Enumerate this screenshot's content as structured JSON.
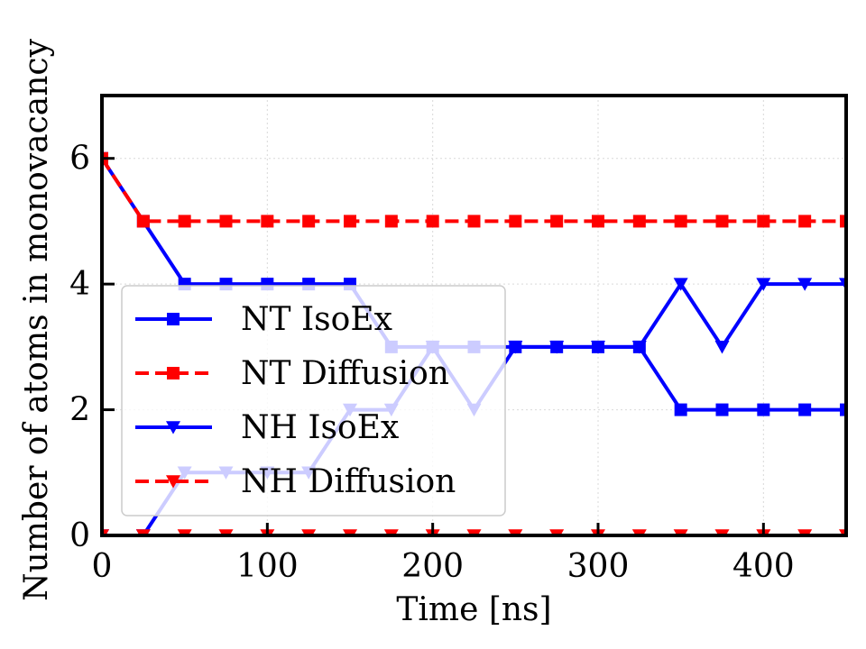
{
  "chart_data": {
    "type": "line",
    "title": "",
    "xlabel": "Time [ns]",
    "ylabel": "Number of atoms in monovacancy",
    "xlim": [
      0,
      450
    ],
    "ylim": [
      0,
      7
    ],
    "xticks": [
      0,
      100,
      200,
      300,
      400
    ],
    "yticks": [
      0,
      2,
      4,
      6
    ],
    "grid": true,
    "legend_position": "lower-left",
    "x": [
      0,
      25,
      50,
      75,
      100,
      125,
      150,
      175,
      200,
      225,
      250,
      275,
      300,
      325,
      350,
      375,
      400,
      425,
      450
    ],
    "series": [
      {
        "name": "NT IsoEx",
        "color": "#0000ff",
        "linestyle": "solid",
        "marker": "square",
        "values": [
          6,
          5,
          4,
          4,
          4,
          4,
          4,
          3,
          3,
          3,
          3,
          3,
          3,
          3,
          2,
          2,
          2,
          2,
          2
        ]
      },
      {
        "name": "NT Diffusion",
        "color": "#ff0000",
        "linestyle": "dashed",
        "marker": "square",
        "values": [
          6,
          5,
          5,
          5,
          5,
          5,
          5,
          5,
          5,
          5,
          5,
          5,
          5,
          5,
          5,
          5,
          5,
          5,
          5
        ]
      },
      {
        "name": "NH IsoEx",
        "color": "#0000ff",
        "linestyle": "solid",
        "marker": "triangle-down",
        "values": [
          0,
          0,
          1,
          1,
          1,
          1,
          2,
          2,
          3,
          2,
          3,
          3,
          3,
          3,
          4,
          3,
          4,
          4,
          4
        ]
      },
      {
        "name": "NH Diffusion",
        "color": "#ff0000",
        "linestyle": "dashed",
        "marker": "triangle-down",
        "values": [
          0,
          0,
          0,
          0,
          0,
          0,
          0,
          0,
          0,
          0,
          0,
          0,
          0,
          0,
          0,
          0,
          0,
          0,
          0
        ]
      }
    ]
  }
}
